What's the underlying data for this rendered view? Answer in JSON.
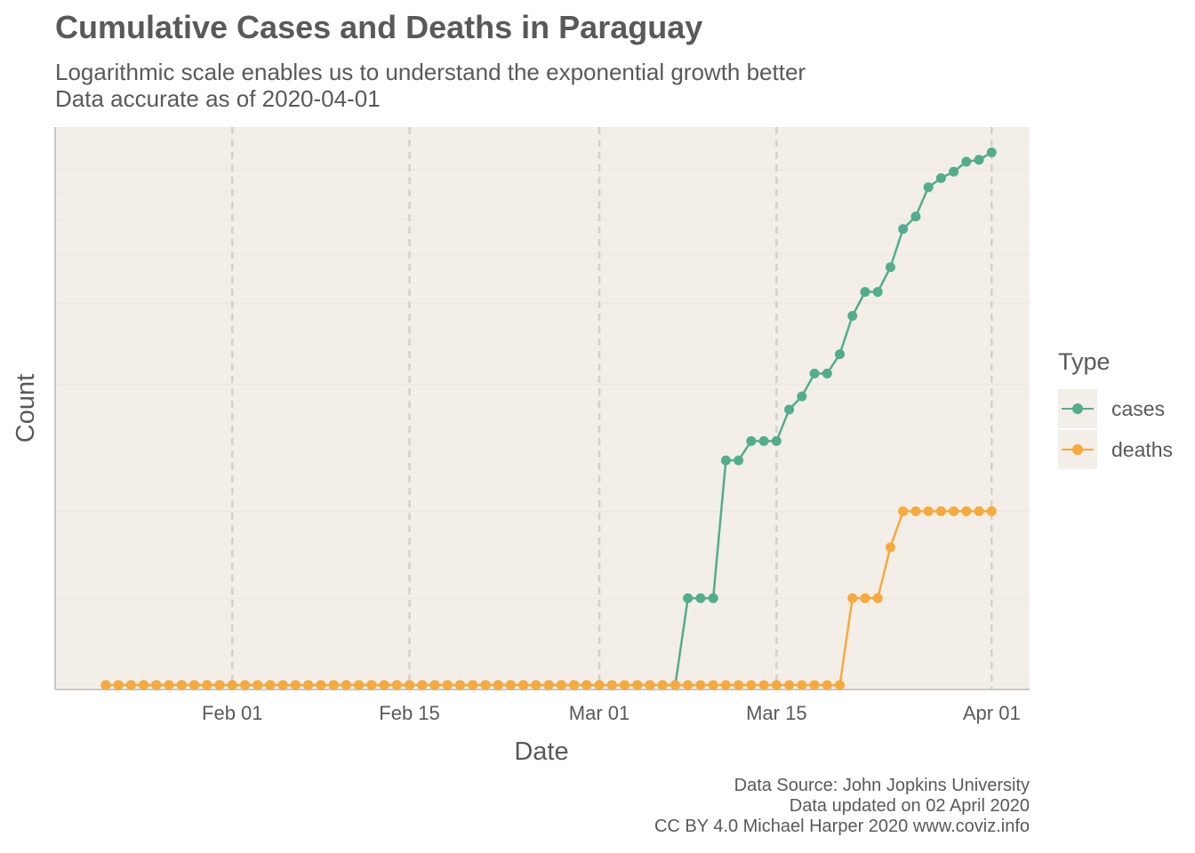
{
  "title": "Cumulative Cases and Deaths in Paraguay",
  "subtitle_lines": [
    "Logarithmic scale enables us to understand the exponential growth better",
    "Data accurate as of 2020-04-01"
  ],
  "caption_lines": [
    "Data Source: John Jopkins University",
    "Data updated on 02 April 2020",
    "CC BY 4.0 Michael Harper 2020 www.coviz.info"
  ],
  "colors": {
    "cases": "#52ad8e",
    "deaths": "#f7a93c",
    "panel": "#f3eee7",
    "grid": "#d3d0cb",
    "text": "#595959"
  },
  "chart_data": {
    "type": "line",
    "xlabel": "Date",
    "ylabel": "Count",
    "y_scale": "log",
    "x_ticks": [
      {
        "date": "2020-02-01",
        "label": "Feb 01"
      },
      {
        "date": "2020-02-15",
        "label": "Feb 15"
      },
      {
        "date": "2020-03-01",
        "label": "Mar 01"
      },
      {
        "date": "2020-03-15",
        "label": "Mar 15"
      },
      {
        "date": "2020-04-01",
        "label": "Apr 01"
      }
    ],
    "x_range": [
      "2020-01-18",
      "2020-04-04"
    ],
    "legend": {
      "title": "Type",
      "position": "right"
    },
    "series": [
      {
        "name": "cases",
        "color": "#52ad8e",
        "points": [
          [
            "2020-01-22",
            0
          ],
          [
            "2020-01-23",
            0
          ],
          [
            "2020-01-24",
            0
          ],
          [
            "2020-01-25",
            0
          ],
          [
            "2020-01-26",
            0
          ],
          [
            "2020-01-27",
            0
          ],
          [
            "2020-01-28",
            0
          ],
          [
            "2020-01-29",
            0
          ],
          [
            "2020-01-30",
            0
          ],
          [
            "2020-01-31",
            0
          ],
          [
            "2020-02-01",
            0
          ],
          [
            "2020-02-02",
            0
          ],
          [
            "2020-02-03",
            0
          ],
          [
            "2020-02-04",
            0
          ],
          [
            "2020-02-05",
            0
          ],
          [
            "2020-02-06",
            0
          ],
          [
            "2020-02-07",
            0
          ],
          [
            "2020-02-08",
            0
          ],
          [
            "2020-02-09",
            0
          ],
          [
            "2020-02-10",
            0
          ],
          [
            "2020-02-11",
            0
          ],
          [
            "2020-02-12",
            0
          ],
          [
            "2020-02-13",
            0
          ],
          [
            "2020-02-14",
            0
          ],
          [
            "2020-02-15",
            0
          ],
          [
            "2020-02-16",
            0
          ],
          [
            "2020-02-17",
            0
          ],
          [
            "2020-02-18",
            0
          ],
          [
            "2020-02-19",
            0
          ],
          [
            "2020-02-20",
            0
          ],
          [
            "2020-02-21",
            0
          ],
          [
            "2020-02-22",
            0
          ],
          [
            "2020-02-23",
            0
          ],
          [
            "2020-02-24",
            0
          ],
          [
            "2020-02-25",
            0
          ],
          [
            "2020-02-26",
            0
          ],
          [
            "2020-02-27",
            0
          ],
          [
            "2020-02-28",
            0
          ],
          [
            "2020-02-29",
            0
          ],
          [
            "2020-03-01",
            0
          ],
          [
            "2020-03-02",
            0
          ],
          [
            "2020-03-03",
            0
          ],
          [
            "2020-03-04",
            0
          ],
          [
            "2020-03-05",
            0
          ],
          [
            "2020-03-06",
            0
          ],
          [
            "2020-03-07",
            0
          ],
          [
            "2020-03-08",
            1
          ],
          [
            "2020-03-09",
            1
          ],
          [
            "2020-03-10",
            1
          ],
          [
            "2020-03-11",
            5
          ],
          [
            "2020-03-12",
            5
          ],
          [
            "2020-03-13",
            6
          ],
          [
            "2020-03-14",
            6
          ],
          [
            "2020-03-15",
            6
          ],
          [
            "2020-03-16",
            8
          ],
          [
            "2020-03-17",
            9
          ],
          [
            "2020-03-18",
            11
          ],
          [
            "2020-03-19",
            11
          ],
          [
            "2020-03-20",
            13
          ],
          [
            "2020-03-21",
            18
          ],
          [
            "2020-03-22",
            22
          ],
          [
            "2020-03-23",
            22
          ],
          [
            "2020-03-24",
            27
          ],
          [
            "2020-03-25",
            37
          ],
          [
            "2020-03-26",
            41
          ],
          [
            "2020-03-27",
            52
          ],
          [
            "2020-03-28",
            56
          ],
          [
            "2020-03-29",
            59
          ],
          [
            "2020-03-30",
            64
          ],
          [
            "2020-03-31",
            65
          ],
          [
            "2020-04-01",
            69
          ]
        ]
      },
      {
        "name": "deaths",
        "color": "#f7a93c",
        "points": [
          [
            "2020-01-22",
            0
          ],
          [
            "2020-01-23",
            0
          ],
          [
            "2020-01-24",
            0
          ],
          [
            "2020-01-25",
            0
          ],
          [
            "2020-01-26",
            0
          ],
          [
            "2020-01-27",
            0
          ],
          [
            "2020-01-28",
            0
          ],
          [
            "2020-01-29",
            0
          ],
          [
            "2020-01-30",
            0
          ],
          [
            "2020-01-31",
            0
          ],
          [
            "2020-02-01",
            0
          ],
          [
            "2020-02-02",
            0
          ],
          [
            "2020-02-03",
            0
          ],
          [
            "2020-02-04",
            0
          ],
          [
            "2020-02-05",
            0
          ],
          [
            "2020-02-06",
            0
          ],
          [
            "2020-02-07",
            0
          ],
          [
            "2020-02-08",
            0
          ],
          [
            "2020-02-09",
            0
          ],
          [
            "2020-02-10",
            0
          ],
          [
            "2020-02-11",
            0
          ],
          [
            "2020-02-12",
            0
          ],
          [
            "2020-02-13",
            0
          ],
          [
            "2020-02-14",
            0
          ],
          [
            "2020-02-15",
            0
          ],
          [
            "2020-02-16",
            0
          ],
          [
            "2020-02-17",
            0
          ],
          [
            "2020-02-18",
            0
          ],
          [
            "2020-02-19",
            0
          ],
          [
            "2020-02-20",
            0
          ],
          [
            "2020-02-21",
            0
          ],
          [
            "2020-02-22",
            0
          ],
          [
            "2020-02-23",
            0
          ],
          [
            "2020-02-24",
            0
          ],
          [
            "2020-02-25",
            0
          ],
          [
            "2020-02-26",
            0
          ],
          [
            "2020-02-27",
            0
          ],
          [
            "2020-02-28",
            0
          ],
          [
            "2020-02-29",
            0
          ],
          [
            "2020-03-01",
            0
          ],
          [
            "2020-03-02",
            0
          ],
          [
            "2020-03-03",
            0
          ],
          [
            "2020-03-04",
            0
          ],
          [
            "2020-03-05",
            0
          ],
          [
            "2020-03-06",
            0
          ],
          [
            "2020-03-07",
            0
          ],
          [
            "2020-03-08",
            0
          ],
          [
            "2020-03-09",
            0
          ],
          [
            "2020-03-10",
            0
          ],
          [
            "2020-03-11",
            0
          ],
          [
            "2020-03-12",
            0
          ],
          [
            "2020-03-13",
            0
          ],
          [
            "2020-03-14",
            0
          ],
          [
            "2020-03-15",
            0
          ],
          [
            "2020-03-16",
            0
          ],
          [
            "2020-03-17",
            0
          ],
          [
            "2020-03-18",
            0
          ],
          [
            "2020-03-19",
            0
          ],
          [
            "2020-03-20",
            0
          ],
          [
            "2020-03-21",
            1
          ],
          [
            "2020-03-22",
            1
          ],
          [
            "2020-03-23",
            1
          ],
          [
            "2020-03-24",
            2
          ],
          [
            "2020-03-25",
            3
          ],
          [
            "2020-03-26",
            3
          ],
          [
            "2020-03-27",
            3
          ],
          [
            "2020-03-28",
            3
          ],
          [
            "2020-03-29",
            3
          ],
          [
            "2020-03-30",
            3
          ],
          [
            "2020-03-31",
            3
          ],
          [
            "2020-04-01",
            3
          ]
        ]
      }
    ]
  }
}
